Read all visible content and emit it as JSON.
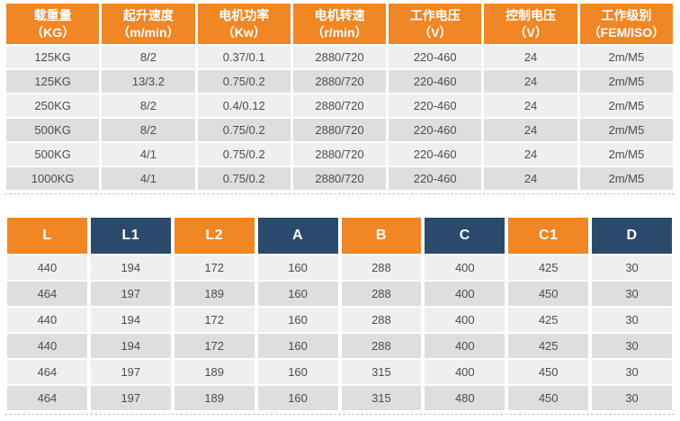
{
  "colors": {
    "orange": "#F08624",
    "navy": "#2B4A6B",
    "row_light": "#EFEFEF",
    "row_dark": "#DFDEDE",
    "cell_text": "#4D4D4D",
    "dash": "#C6C6C6"
  },
  "spec_table": {
    "columns": [
      {
        "title": "载重量",
        "unit": "（KG）"
      },
      {
        "title": "起升速度",
        "unit": "（m/min）"
      },
      {
        "title": "电机功率",
        "unit": "（Kw）"
      },
      {
        "title": "电机转速",
        "unit": "（r/min）"
      },
      {
        "title": "工作电压",
        "unit": "（V）"
      },
      {
        "title": "控制电压",
        "unit": "（V）"
      },
      {
        "title": "工作级别",
        "unit": "（FEM/ISO）"
      }
    ],
    "rows": [
      [
        "125KG",
        "8/2",
        "0.37/0.1",
        "2880/720",
        "220-460",
        "24",
        "2m/M5"
      ],
      [
        "125KG",
        "13/3.2",
        "0.75/0.2",
        "2880/720",
        "220-460",
        "24",
        "2m/M5"
      ],
      [
        "250KG",
        "8/2",
        "0.4/0.12",
        "2880/720",
        "220-460",
        "24",
        "2m/M5"
      ],
      [
        "500KG",
        "8/2",
        "0.75/0.2",
        "2880/720",
        "220-460",
        "24",
        "2m/M5"
      ],
      [
        "500KG",
        "4/1",
        "0.75/0.2",
        "2880/720",
        "220-460",
        "24",
        "2m/M5"
      ],
      [
        "1000KG",
        "4/1",
        "0.75/0.2",
        "2880/720",
        "220-460",
        "24",
        "2m/M5"
      ]
    ]
  },
  "dimension_table": {
    "columns": [
      "L",
      "L1",
      "L2",
      "A",
      "B",
      "C",
      "C1",
      "D"
    ],
    "rows": [
      [
        "440",
        "194",
        "172",
        "160",
        "288",
        "400",
        "425",
        "30"
      ],
      [
        "464",
        "197",
        "189",
        "160",
        "288",
        "400",
        "450",
        "30"
      ],
      [
        "440",
        "194",
        "172",
        "160",
        "288",
        "400",
        "425",
        "30"
      ],
      [
        "440",
        "194",
        "172",
        "160",
        "288",
        "400",
        "425",
        "30"
      ],
      [
        "464",
        "197",
        "189",
        "160",
        "315",
        "400",
        "450",
        "30"
      ],
      [
        "464",
        "197",
        "189",
        "160",
        "315",
        "480",
        "450",
        "30"
      ]
    ]
  }
}
